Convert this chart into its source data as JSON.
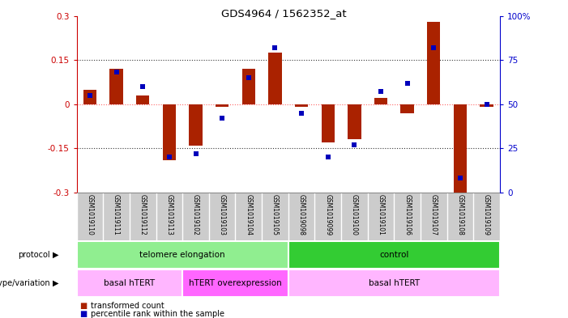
{
  "title": "GDS4964 / 1562352_at",
  "samples": [
    "GSM1019110",
    "GSM1019111",
    "GSM1019112",
    "GSM1019113",
    "GSM1019102",
    "GSM1019103",
    "GSM1019104",
    "GSM1019105",
    "GSM1019098",
    "GSM1019099",
    "GSM1019100",
    "GSM1019101",
    "GSM1019106",
    "GSM1019107",
    "GSM1019108",
    "GSM1019109"
  ],
  "red_bars": [
    0.05,
    0.12,
    0.03,
    -0.19,
    -0.14,
    -0.01,
    0.12,
    0.175,
    -0.01,
    -0.13,
    -0.12,
    0.02,
    -0.03,
    0.28,
    -0.3,
    -0.01
  ],
  "blue_squares": [
    55,
    68,
    60,
    20,
    22,
    42,
    65,
    82,
    45,
    20,
    27,
    57,
    62,
    82,
    8,
    50
  ],
  "ylim_left": [
    -0.3,
    0.3
  ],
  "ylim_right": [
    0,
    100
  ],
  "yticks_left": [
    -0.3,
    -0.15,
    0,
    0.15,
    0.3
  ],
  "yticks_right": [
    0,
    25,
    50,
    75,
    100
  ],
  "hline_y": [
    0.15,
    0,
    -0.15
  ],
  "protocol_labels": [
    {
      "text": "telomere elongation",
      "start": 0,
      "end": 7,
      "color": "#90EE90"
    },
    {
      "text": "control",
      "start": 8,
      "end": 15,
      "color": "#33CC33"
    }
  ],
  "genotype_labels": [
    {
      "text": "basal hTERT",
      "start": 0,
      "end": 3,
      "color": "#FFB6FF"
    },
    {
      "text": "hTERT overexpression",
      "start": 4,
      "end": 7,
      "color": "#FF66FF"
    },
    {
      "text": "basal hTERT",
      "start": 8,
      "end": 15,
      "color": "#FFB6FF"
    }
  ],
  "bar_color": "#AA2200",
  "square_color": "#0000BB",
  "bg_color": "#FFFFFF",
  "plot_bg": "#FFFFFF",
  "axis_label_color_left": "#CC0000",
  "axis_label_color_right": "#0000CC",
  "zero_line_color": "#FF6666",
  "dotted_line_color": "#333333",
  "sample_bg_color": "#CCCCCC",
  "bar_width": 0.5
}
